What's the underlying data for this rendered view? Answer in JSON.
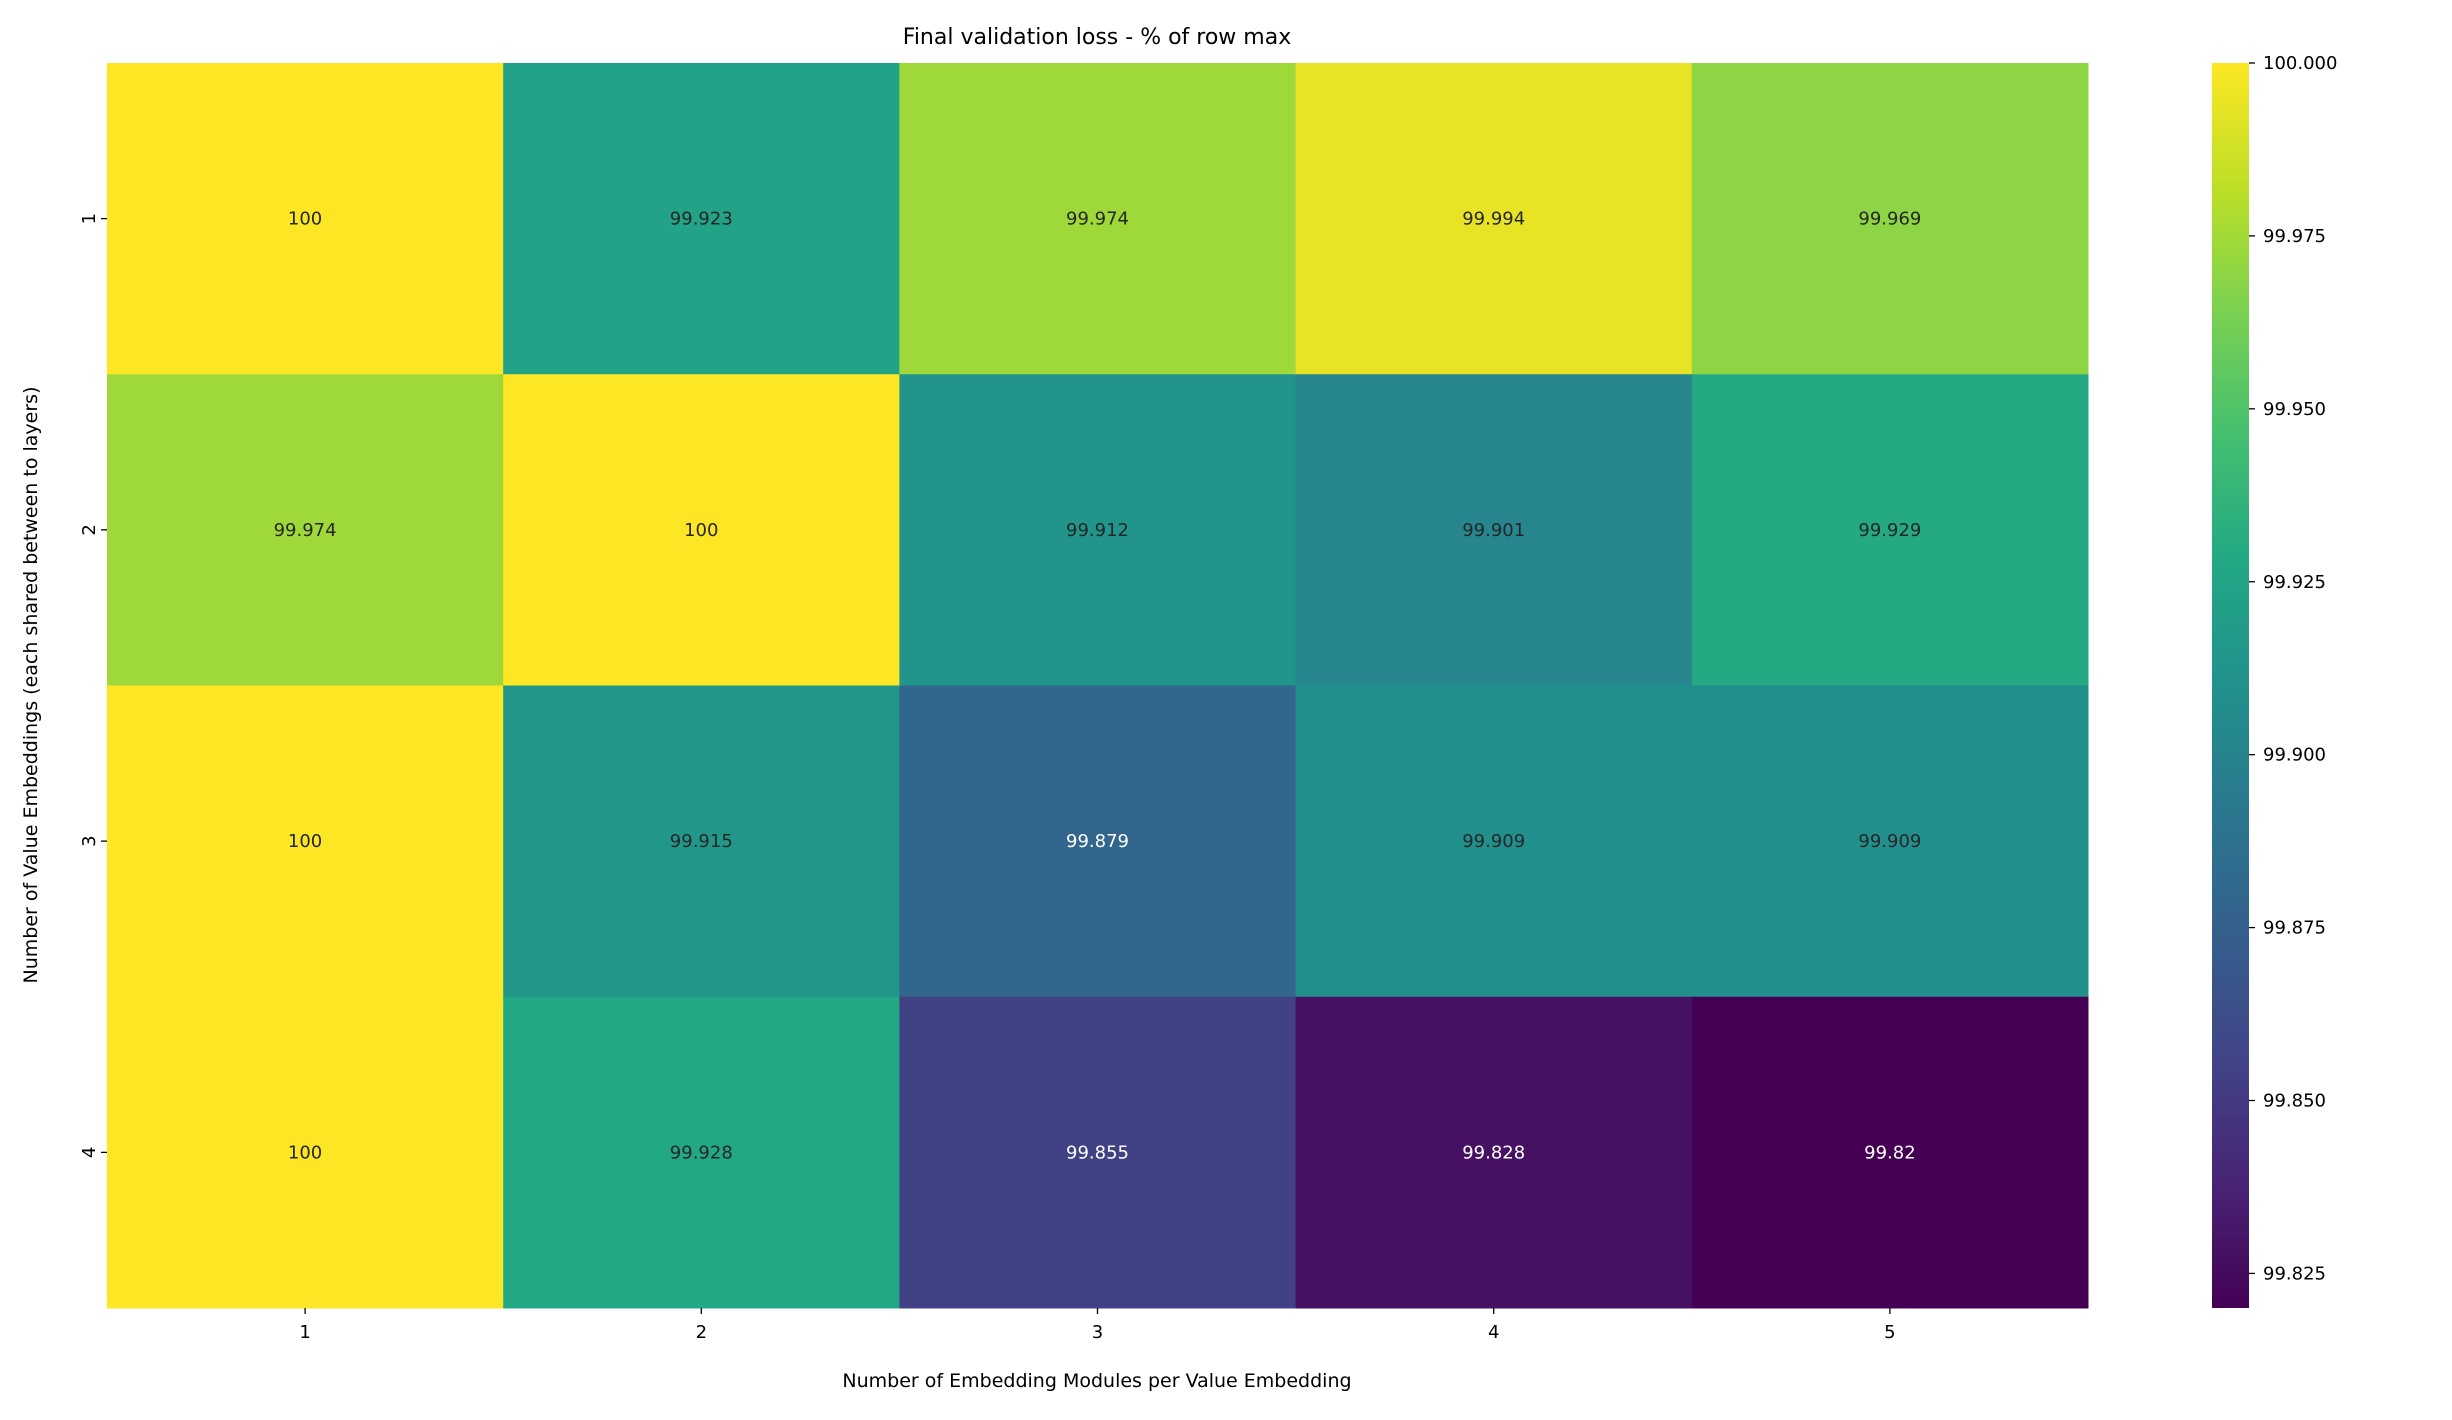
{
  "chart_data": {
    "type": "heatmap",
    "title": "Final validation loss - % of row max",
    "xlabel": "Number of Embedding Modules per Value Embedding",
    "ylabel": "Number of Value Embeddings (each shared between to layers)",
    "x_categories": [
      "1",
      "2",
      "3",
      "4",
      "5"
    ],
    "y_categories": [
      "1",
      "2",
      "3",
      "4"
    ],
    "values": [
      [
        100,
        99.923,
        99.974,
        99.994,
        99.969
      ],
      [
        99.974,
        100,
        99.912,
        99.901,
        99.929
      ],
      [
        100,
        99.915,
        99.879,
        99.909,
        99.909
      ],
      [
        100,
        99.928,
        99.855,
        99.828,
        99.82
      ]
    ],
    "annotations": [
      [
        "100",
        "99.923",
        "99.974",
        "99.994",
        "99.969"
      ],
      [
        "99.974",
        "100",
        "99.912",
        "99.901",
        "99.929"
      ],
      [
        "100",
        "99.915",
        "99.879",
        "99.909",
        "99.909"
      ],
      [
        "100",
        "99.928",
        "99.855",
        "99.828",
        "99.82"
      ]
    ],
    "colormap": "viridis",
    "colorbar": {
      "range": [
        99.82,
        100.0
      ],
      "ticks": [
        "100.000",
        "99.975",
        "99.950",
        "99.925",
        "99.900",
        "99.875",
        "99.850",
        "99.825"
      ],
      "tick_values": [
        100.0,
        99.975,
        99.95,
        99.925,
        99.9,
        99.875,
        99.85,
        99.825
      ]
    },
    "grid": false
  }
}
